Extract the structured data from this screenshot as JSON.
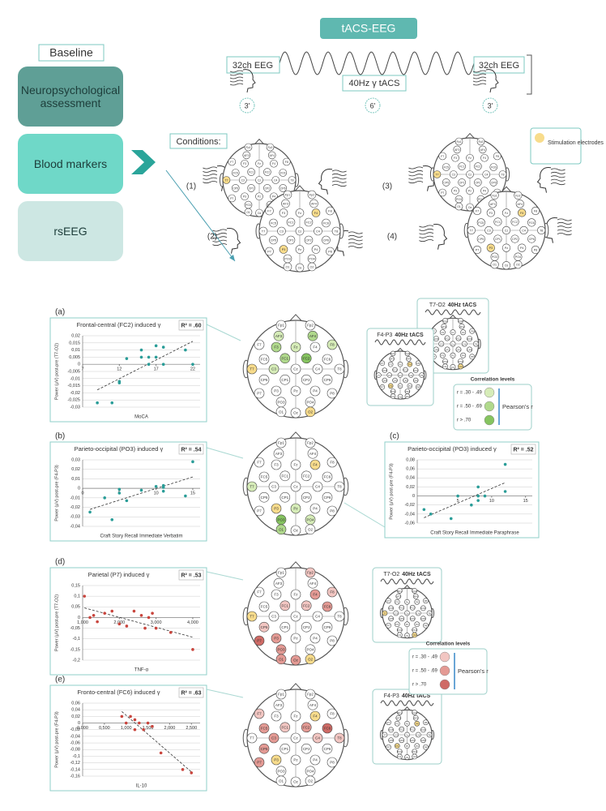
{
  "diagram": {
    "title": "tACS-EEG",
    "baseline": {
      "title": "Baseline",
      "items": [
        "Neuropsychological assessment",
        "Blood markers",
        "rsEEG"
      ]
    },
    "protocol": {
      "pre": "32ch EEG",
      "stim": "40Hz γ tACS",
      "post": "32ch EEG",
      "durations": [
        "3'",
        "6'",
        "3'"
      ]
    },
    "conditions": {
      "title": "Conditions:",
      "labels": [
        "(1)",
        "(2)",
        "(3)",
        "(4)"
      ],
      "legend": "Stimulation electrodes"
    },
    "electrodes": [
      "Fp1",
      "Fp2",
      "AF3",
      "AF4",
      "F7",
      "F3",
      "Fz",
      "F4",
      "F8",
      "FC5",
      "FC1",
      "FC2",
      "FC6",
      "T7",
      "C3",
      "Cz",
      "C4",
      "T8",
      "CP5",
      "CP1",
      "CP2",
      "CP6",
      "P7",
      "P3",
      "Pz",
      "P4",
      "P8",
      "PO3",
      "PO4",
      "O1",
      "Oz",
      "O2"
    ],
    "montages": {
      "t7o2": "T7-O2",
      "f4p3": "F4-P3",
      "stim": "40Hz tACS"
    },
    "correlation_legend": {
      "title": "Correlation levels",
      "levels": [
        "r = .30 - .49",
        "r = .50 - .69",
        "r > .70"
      ],
      "measure": "Pearson's r"
    }
  },
  "chart_data": [
    {
      "type": "scatter",
      "panel": "(a)",
      "title": "Frontal-central (FC2) induced γ",
      "r2": "R² = .60",
      "xlabel": "MoCA",
      "ylabel": "Power (μV) post-pre (T7-O2)",
      "color": "#2a9d98",
      "trendline": true,
      "x_axis_at_zero": true,
      "grid": true,
      "x": [
        9,
        11,
        12,
        12,
        13,
        15,
        15,
        16,
        16,
        17,
        17,
        18,
        18,
        21,
        22
      ],
      "values": [
        -0.027,
        -0.027,
        -0.012,
        -0.013,
        0.004,
        0.01,
        0.005,
        0.005,
        0.0,
        0.013,
        0.005,
        0.012,
        0.0,
        0.01,
        0.0
      ],
      "xlim": [
        7,
        23
      ],
      "xticks": [
        7,
        12,
        17,
        22
      ],
      "ylim": [
        -0.03,
        0.02
      ],
      "yticks": [
        {
          "value": 0.02,
          "label": "0,02"
        },
        {
          "value": 0.015,
          "label": "0,015"
        },
        {
          "value": 0.01,
          "label": "0,01"
        },
        {
          "value": 0.005,
          "label": "0,005"
        },
        0,
        {
          "value": -0.005,
          "label": "-0,005"
        },
        {
          "value": -0.01,
          "label": "-0,01"
        },
        {
          "value": -0.015,
          "label": "-0,015"
        },
        {
          "value": -0.02,
          "label": "-0,02"
        },
        {
          "value": -0.025,
          "label": "-0,025"
        },
        {
          "value": -0.03,
          "label": "-0,03"
        }
      ]
    },
    {
      "type": "scatter",
      "panel": "(b)",
      "title": "Parieto-occipital (PO3) induced γ",
      "r2": "R² = .54",
      "xlabel": "Craft Story Recall Immediate Verbatim",
      "ylabel": "Power (μV) post-pre (F4-P3)",
      "color": "#2a9d98",
      "trendline": true,
      "x_axis_at_zero": true,
      "grid": true,
      "x": [
        1,
        3,
        4,
        5,
        5,
        6,
        8,
        10,
        11,
        11,
        11,
        14,
        15
      ],
      "values": [
        -0.025,
        -0.01,
        -0.033,
        -0.001,
        -0.005,
        -0.013,
        -0.002,
        0.002,
        0.003,
        0.001,
        -0.003,
        -0.008,
        0.028
      ],
      "xlim": [
        0,
        16
      ],
      "xticks": [
        0,
        5,
        10,
        15
      ],
      "ylim": [
        -0.04,
        0.03
      ],
      "yticks": [
        {
          "value": 0.03,
          "label": "0,03"
        },
        {
          "value": 0.02,
          "label": "0,02"
        },
        {
          "value": 0.01,
          "label": "0,01"
        },
        0,
        {
          "value": -0.01,
          "label": "-0,01"
        },
        {
          "value": -0.02,
          "label": "-0,02"
        },
        {
          "value": -0.03,
          "label": "-0,03"
        },
        {
          "value": -0.04,
          "label": "-0,04"
        }
      ]
    },
    {
      "type": "scatter",
      "panel": "(c)",
      "title": "Parieto-occipital (PO3) induced γ",
      "r2": "R² = .52",
      "xlabel": "Craft Story Recall Immediate Paraphrase",
      "ylabel": "Power (μV) post-pre (F4-P3)",
      "color": "#2a9d98",
      "trendline": true,
      "x_axis_at_zero": true,
      "grid": true,
      "x": [
        0,
        1,
        4,
        5,
        7,
        8,
        8,
        8,
        9,
        12,
        12
      ],
      "values": [
        -0.03,
        -0.04,
        -0.05,
        0.0,
        -0.02,
        -0.01,
        0.0,
        0.02,
        0.0,
        0.07,
        0.01
      ],
      "xlim": [
        -1,
        16
      ],
      "xticks": [
        5,
        10,
        15
      ],
      "ylim": [
        -0.06,
        0.08
      ],
      "yticks": [
        {
          "value": 0.08,
          "label": "0,08"
        },
        {
          "value": 0.06,
          "label": "0,06"
        },
        {
          "value": 0.04,
          "label": "0,04"
        },
        {
          "value": 0.02,
          "label": "0,02"
        },
        0,
        {
          "value": -0.02,
          "label": "-0,02"
        },
        {
          "value": -0.04,
          "label": "-0,04"
        },
        {
          "value": -0.06,
          "label": "-0,06"
        }
      ]
    },
    {
      "type": "scatter",
      "panel": "(d)",
      "title": "Parietal (P7) induced γ",
      "r2": "R² = .53",
      "xlabel": "TNF-α",
      "ylabel": "Power (μV) post-pre (T7-O2)",
      "color": "#c9453d",
      "trendline": true,
      "x_axis_at_zero": true,
      "grid": true,
      "x": [
        1050,
        1200,
        1300,
        1400,
        1600,
        1800,
        2000,
        2200,
        2400,
        2600,
        2700,
        2800,
        2900,
        3000,
        3400,
        4000
      ],
      "values": [
        0.1,
        0.0,
        0.01,
        -0.02,
        0.02,
        0.03,
        -0.03,
        -0.04,
        0.03,
        0.01,
        -0.05,
        0.0,
        0.02,
        -0.05,
        -0.07,
        -0.15
      ],
      "xlim": [
        1000,
        4200
      ],
      "xticks": [
        {
          "value": 1000,
          "label": "1,000"
        },
        {
          "value": 2000,
          "label": "2,000"
        },
        {
          "value": 3000,
          "label": "3,000"
        },
        {
          "value": 4000,
          "label": "4,000"
        }
      ],
      "ylim": [
        -0.2,
        0.15
      ],
      "yticks": [
        {
          "value": 0.15,
          "label": "0,15"
        },
        {
          "value": 0.1,
          "label": "0,1"
        },
        {
          "value": 0.05,
          "label": "0,05"
        },
        0,
        {
          "value": -0.05,
          "label": "-0,05"
        },
        {
          "value": -0.1,
          "label": "-0,1"
        },
        {
          "value": -0.15,
          "label": "-0,15"
        },
        {
          "value": -0.2,
          "label": "-0,2"
        }
      ]
    },
    {
      "type": "scatter",
      "panel": "(e)",
      "title": "Fronto-central (FC6) induced γ",
      "r2": "R² = .63",
      "xlabel": "IL-10",
      "ylabel": "Power (μV) post-pre (F4-P3)",
      "color": "#c9453d",
      "trendline": true,
      "x_axis_at_zero": true,
      "grid": true,
      "x": [
        0.9,
        1.0,
        1.1,
        1.2,
        1.2,
        1.3,
        1.4,
        1.5,
        1.6,
        1.8,
        2.3,
        2.5
      ],
      "values": [
        0.02,
        0.0,
        0.02,
        0.01,
        -0.02,
        0.0,
        -0.02,
        0.0,
        -0.01,
        -0.09,
        -0.14,
        -0.15
      ],
      "xlim": [
        0,
        2.7
      ],
      "xticks": [
        {
          "value": 0,
          "label": "0,000"
        },
        {
          "value": 0.5,
          "label": "0,500"
        },
        {
          "value": 1,
          "label": "1,000"
        },
        {
          "value": 1.5,
          "label": "1,500"
        },
        {
          "value": 2,
          "label": "2,000"
        },
        {
          "value": 2.5,
          "label": "2,500"
        }
      ],
      "ylim": [
        -0.16,
        0.06
      ],
      "yticks": [
        {
          "value": 0.06,
          "label": "0,06"
        },
        {
          "value": 0.04,
          "label": "0,04"
        },
        {
          "value": 0.02,
          "label": "0,02"
        },
        0,
        {
          "value": -0.02,
          "label": "-0,02"
        },
        {
          "value": -0.04,
          "label": "-0,04"
        },
        {
          "value": -0.06,
          "label": "-0,06"
        },
        {
          "value": -0.08,
          "label": "-0,08"
        },
        {
          "value": -0.1,
          "label": "-0,1"
        },
        {
          "value": -0.12,
          "label": "-0,12"
        },
        {
          "value": -0.14,
          "label": "-0,14"
        },
        {
          "value": -0.16,
          "label": "-0,16"
        }
      ]
    }
  ]
}
